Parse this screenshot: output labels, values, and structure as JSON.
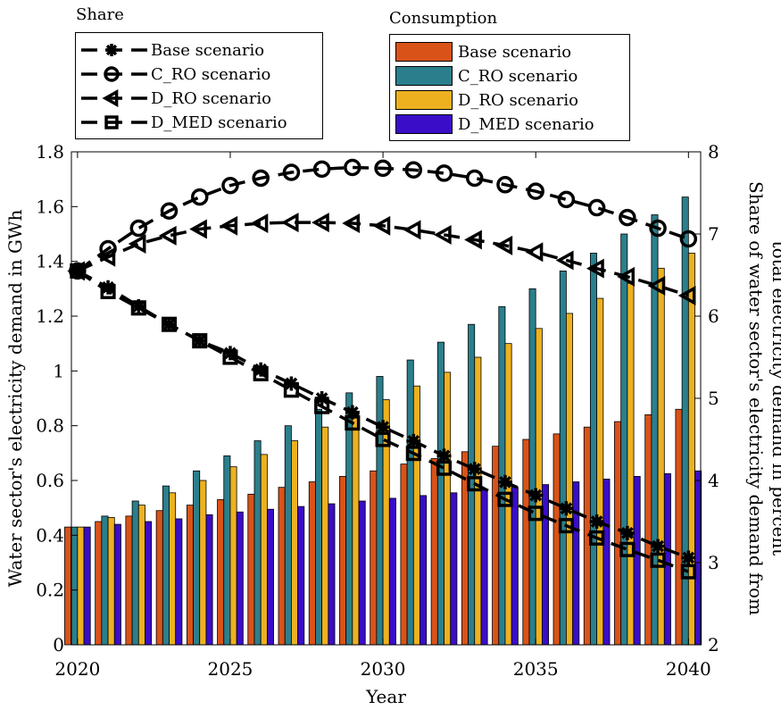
{
  "chart_data": {
    "type": "bar",
    "x": [
      2020,
      2021,
      2022,
      2023,
      2024,
      2025,
      2026,
      2027,
      2028,
      2029,
      2030,
      2031,
      2032,
      2033,
      2034,
      2035,
      2036,
      2037,
      2038,
      2039,
      2040
    ],
    "xlabel": "Year",
    "xticks": [
      "2020",
      "2025",
      "2030",
      "2035",
      "2040"
    ],
    "xlim": [
      2019.8,
      2040.4
    ],
    "ylabel": "Water sector's electricity demand in GWh",
    "ylim": [
      0,
      1.8
    ],
    "yticks": [
      "0",
      "0.2",
      "0.4",
      "0.6",
      "0.8",
      "1",
      "1.2",
      "1.4",
      "1.6",
      "1.8"
    ],
    "y2label_line1": "Share of water sector's electricity demand from",
    "y2label_line2": "total electricity demand in percent",
    "y2lim": [
      2,
      8
    ],
    "y2ticks": [
      "2",
      "3",
      "4",
      "5",
      "6",
      "7",
      "8"
    ],
    "grid": false,
    "consumption_legend_title": "Consumption",
    "share_legend_title": "Share",
    "consumption_series": [
      {
        "name": "Base scenario",
        "color": "#D95319",
        "values": [
          0.43,
          0.45,
          0.47,
          0.49,
          0.51,
          0.53,
          0.55,
          0.575,
          0.595,
          0.615,
          0.635,
          0.66,
          0.68,
          0.705,
          0.725,
          0.75,
          0.77,
          0.795,
          0.815,
          0.84,
          0.86
        ]
      },
      {
        "name": "C_RO scenario",
        "color": "#2B7F8C",
        "values": [
          0.43,
          0.47,
          0.525,
          0.58,
          0.635,
          0.69,
          0.745,
          0.8,
          0.86,
          0.92,
          0.98,
          1.04,
          1.105,
          1.17,
          1.235,
          1.3,
          1.365,
          1.43,
          1.5,
          1.57,
          1.635
        ]
      },
      {
        "name": "D_RO scenario",
        "color": "#EDB120",
        "values": [
          0.43,
          0.465,
          0.51,
          0.555,
          0.6,
          0.65,
          0.695,
          0.745,
          0.795,
          0.845,
          0.895,
          0.945,
          0.995,
          1.05,
          1.1,
          1.155,
          1.21,
          1.265,
          1.32,
          1.375,
          1.43
        ]
      },
      {
        "name": "D_MED scenario",
        "color": "#3A0DC8",
        "values": [
          0.43,
          0.44,
          0.45,
          0.46,
          0.475,
          0.485,
          0.495,
          0.505,
          0.515,
          0.525,
          0.535,
          0.545,
          0.555,
          0.565,
          0.575,
          0.585,
          0.595,
          0.605,
          0.615,
          0.625,
          0.635
        ]
      }
    ],
    "share_series": [
      {
        "name": "Base scenario",
        "marker": "asterisk",
        "values": [
          6.55,
          6.35,
          6.12,
          5.9,
          5.7,
          5.55,
          5.35,
          5.18,
          5.0,
          4.83,
          4.65,
          4.48,
          4.3,
          4.14,
          3.98,
          3.82,
          3.66,
          3.5,
          3.36,
          3.2,
          3.06
        ]
      },
      {
        "name": "C_RO scenario",
        "marker": "circle",
        "values": [
          6.55,
          6.82,
          7.07,
          7.28,
          7.45,
          7.59,
          7.68,
          7.75,
          7.79,
          7.81,
          7.8,
          7.78,
          7.74,
          7.68,
          7.6,
          7.52,
          7.42,
          7.32,
          7.2,
          7.07,
          6.94
        ]
      },
      {
        "name": "D_RO scenario",
        "marker": "triangle-left",
        "values": [
          6.55,
          6.72,
          6.88,
          6.98,
          7.06,
          7.1,
          7.13,
          7.14,
          7.14,
          7.13,
          7.1,
          7.05,
          6.99,
          6.93,
          6.86,
          6.78,
          6.68,
          6.58,
          6.48,
          6.37,
          6.25
        ]
      },
      {
        "name": "D_MED scenario",
        "marker": "square",
        "values": [
          6.55,
          6.3,
          6.1,
          5.9,
          5.7,
          5.5,
          5.3,
          5.1,
          4.9,
          4.7,
          4.5,
          4.33,
          4.15,
          3.96,
          3.77,
          3.6,
          3.45,
          3.3,
          3.16,
          3.03,
          2.89
        ]
      }
    ]
  }
}
